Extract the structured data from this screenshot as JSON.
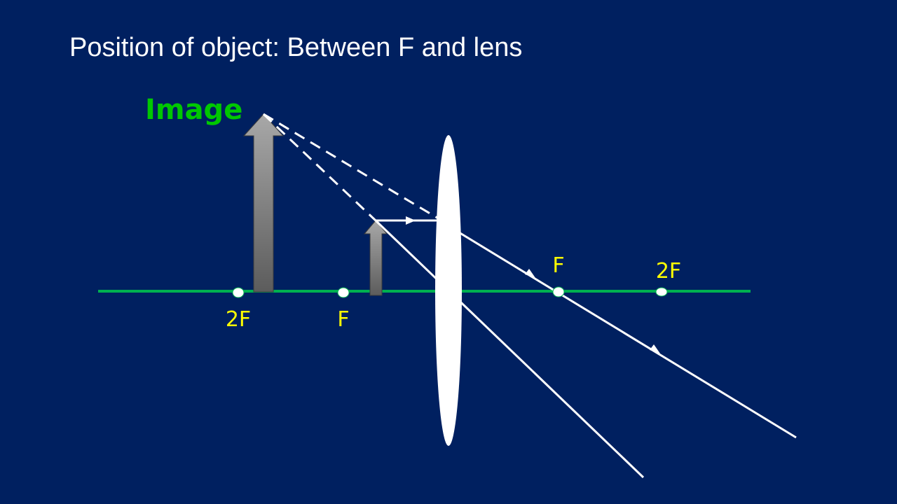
{
  "slide": {
    "title": "Position of object: Between F and lens"
  },
  "diagram": {
    "image_label": "Image",
    "labels": {
      "left_2f": "2F",
      "left_f": "F",
      "right_f": "F",
      "right_2f": "2F"
    },
    "colors": {
      "background": "#002060",
      "principal_axis": "#00b050",
      "labels": "#ffff00",
      "image_label": "#00c800",
      "rays": "#ffffff",
      "lens": "#ffffff",
      "arrows": "#7f7f7f"
    }
  }
}
